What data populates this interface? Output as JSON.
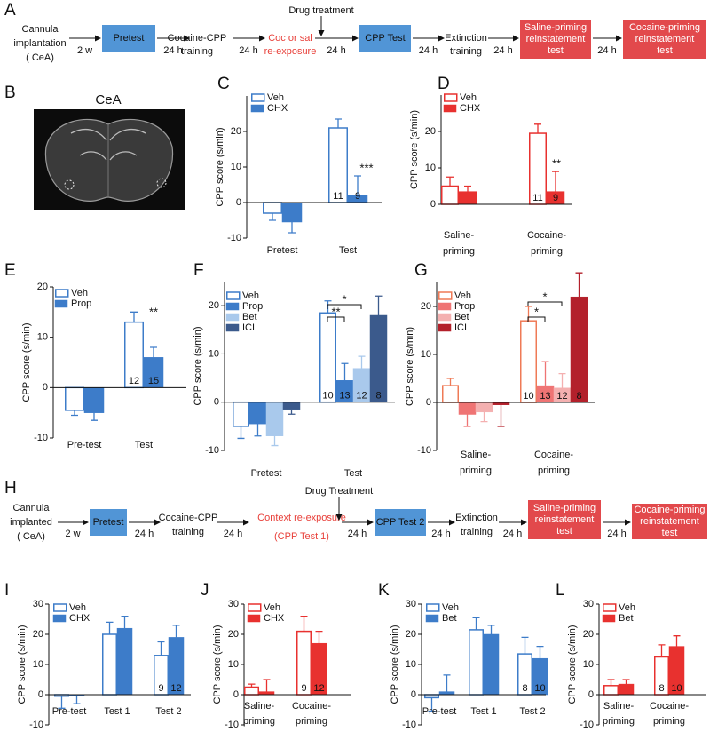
{
  "panels": [
    "A",
    "B",
    "C",
    "D",
    "E",
    "F",
    "G",
    "H",
    "I",
    "J",
    "K",
    "L"
  ],
  "timeline_a": {
    "start": [
      "Cannula",
      "implantation",
      "( CeA)"
    ],
    "intervals": [
      "2 w",
      "24 h",
      "24 h",
      "24 h",
      "24 h",
      "24 h",
      "24 h"
    ],
    "steps": [
      [
        "Pretest"
      ],
      [
        "Cocaine-CPP",
        "training"
      ],
      [
        "Coc or sal",
        "re-exposure"
      ],
      [
        "CPP Test"
      ],
      [
        "Extinction",
        "training"
      ],
      [
        "Saline-priming",
        "reinstatement",
        "test"
      ],
      [
        "Cocaine-priming",
        "reinstatement",
        "test"
      ]
    ],
    "drug": "Drug treatment"
  },
  "timeline_h": {
    "start": [
      "Cannula",
      "implanted",
      "( CeA)"
    ],
    "intervals": [
      "2 w",
      "24 h",
      "24 h",
      "24 h",
      "24 h",
      "24 h",
      "24 h"
    ],
    "steps": [
      [
        "Pretest"
      ],
      [
        "Cocaine-CPP",
        "training"
      ],
      [
        "Context re-exposure",
        "(CPP Test 1)"
      ],
      [
        "CPP Test 2"
      ],
      [
        "Extinction",
        "training"
      ],
      [
        "Saline-priming",
        "reinstatement",
        "test"
      ],
      [
        "Cocaine-priming",
        "reinstatement",
        "test"
      ]
    ],
    "drug": "Drug Treatment"
  },
  "image_b": {
    "label": "CeA"
  },
  "chart_data": [
    {
      "type": "bar",
      "ylabel": "CPP score (s/min)",
      "categories": [
        [
          "Pretest"
        ],
        [
          "Test"
        ]
      ],
      "ylim": [
        -10,
        30
      ],
      "yticks": [
        -10,
        0,
        10,
        20
      ],
      "series": [
        {
          "name": "Veh",
          "color": "#3d7cc9",
          "filled": false,
          "values": [
            -3,
            21
          ],
          "errors": [
            2,
            2.5
          ]
        },
        {
          "name": "CHX",
          "color": "#3d7cc9",
          "filled": true,
          "values": [
            -5.5,
            2
          ],
          "errors": [
            3,
            5.5
          ]
        }
      ],
      "n_labels": [
        11,
        9
      ],
      "annotations": [
        "***"
      ]
    },
    {
      "type": "bar",
      "ylabel": "CPP score (s/min)",
      "categories": [
        [
          "Saline-",
          "priming"
        ],
        [
          "Cocaine-",
          "priming"
        ]
      ],
      "ylim": [
        0,
        30
      ],
      "yticks": [
        0,
        10,
        20
      ],
      "series": [
        {
          "name": "Veh",
          "color": "#e8312f",
          "filled": false,
          "values": [
            5,
            19.5
          ],
          "errors": [
            2.5,
            2.5
          ]
        },
        {
          "name": "CHX",
          "color": "#e8312f",
          "filled": true,
          "values": [
            3.5,
            3.5
          ],
          "errors": [
            1.5,
            5.5
          ]
        }
      ],
      "n_labels": [
        11,
        9
      ],
      "annotations": [
        "**"
      ]
    },
    {
      "type": "bar",
      "ylabel": "CPP score (s/min)",
      "categories": [
        [
          "Pre-test"
        ],
        [
          "Test"
        ]
      ],
      "ylim": [
        -10,
        20
      ],
      "yticks": [
        -10,
        0,
        10,
        20
      ],
      "series": [
        {
          "name": "Veh",
          "color": "#3d7cc9",
          "filled": false,
          "values": [
            -4.5,
            13
          ],
          "errors": [
            1,
            2
          ]
        },
        {
          "name": "Prop",
          "color": "#3d7cc9",
          "filled": true,
          "values": [
            -5,
            6
          ],
          "errors": [
            1.5,
            2
          ]
        }
      ],
      "n_labels": [
        12,
        15
      ],
      "annotations": [
        "**"
      ]
    },
    {
      "type": "bar",
      "ylabel": "CPP score (s/min)",
      "categories": [
        [
          "Pretest"
        ],
        [
          "Test"
        ]
      ],
      "ylim": [
        -10,
        25
      ],
      "yticks": [
        -10,
        0,
        10,
        20
      ],
      "series": [
        {
          "name": "Veh",
          "color": "#3d7cc9",
          "filled": false,
          "values": [
            -5,
            18.5
          ],
          "errors": [
            2.5,
            2.5
          ]
        },
        {
          "name": "Prop",
          "color": "#3d7cc9",
          "filled": true,
          "values": [
            -4.5,
            4.5
          ],
          "errors": [
            2.5,
            3.5
          ]
        },
        {
          "name": "Bet",
          "color": "#a9c9ec",
          "filled": true,
          "values": [
            -7,
            7
          ],
          "errors": [
            2,
            2.5
          ]
        },
        {
          "name": "ICI",
          "color": "#3b5a8c",
          "filled": true,
          "values": [
            -1.5,
            18
          ],
          "errors": [
            1,
            4
          ]
        }
      ],
      "n_labels": [
        10,
        13,
        12,
        8
      ],
      "annotations": [
        "*",
        "**"
      ]
    },
    {
      "type": "bar",
      "ylabel": "CPP score (s/min)",
      "categories": [
        [
          "Saline-",
          "priming"
        ],
        [
          "Cocaine-",
          "priming"
        ]
      ],
      "ylim": [
        -10,
        25
      ],
      "yticks": [
        -10,
        0,
        10,
        20
      ],
      "series": [
        {
          "name": "Veh",
          "color": "#ef7a56",
          "filled": false,
          "values": [
            3.5,
            17
          ],
          "errors": [
            1.5,
            3
          ]
        },
        {
          "name": "Prop",
          "color": "#ef7474",
          "filled": true,
          "values": [
            -2.5,
            3.5
          ],
          "errors": [
            2.5,
            5
          ]
        },
        {
          "name": "Bet",
          "color": "#f4b0b0",
          "filled": true,
          "values": [
            -2,
            3
          ],
          "errors": [
            2,
            3
          ]
        },
        {
          "name": "ICI",
          "color": "#b3202b",
          "filled": true,
          "values": [
            -0.5,
            22
          ],
          "errors": [
            4.5,
            5
          ]
        }
      ],
      "n_labels": [
        10,
        13,
        12,
        8
      ],
      "annotations": [
        "*",
        "*"
      ]
    },
    {
      "type": "bar",
      "ylabel": "CPP score (s/min)",
      "categories": [
        [
          "Pre-test"
        ],
        [
          "Test 1"
        ],
        [
          "Test 2"
        ]
      ],
      "ylim": [
        -10,
        30
      ],
      "yticks": [
        -10,
        0,
        10,
        20,
        30
      ],
      "series": [
        {
          "name": "Veh",
          "color": "#3d7cc9",
          "filled": false,
          "values": [
            -0.5,
            20,
            13
          ],
          "errors": [
            4,
            4,
            4.5
          ]
        },
        {
          "name": "CHX",
          "color": "#3d7cc9",
          "filled": true,
          "values": [
            -0.5,
            22,
            19
          ],
          "errors": [
            2.5,
            4,
            4
          ]
        }
      ],
      "n_labels": [
        9,
        12
      ],
      "annotations": []
    },
    {
      "type": "bar",
      "ylabel": "CPP score (s/min)",
      "categories": [
        [
          "Saline-",
          "priming"
        ],
        [
          "Cocaine-",
          "priming"
        ]
      ],
      "ylim": [
        -10,
        30
      ],
      "yticks": [
        -10,
        0,
        10,
        20,
        30
      ],
      "series": [
        {
          "name": "Veh",
          "color": "#e8312f",
          "filled": false,
          "values": [
            2.5,
            21
          ],
          "errors": [
            1,
            5
          ]
        },
        {
          "name": "CHX",
          "color": "#e8312f",
          "filled": true,
          "values": [
            1,
            17
          ],
          "errors": [
            4,
            4
          ]
        }
      ],
      "n_labels": [
        9,
        12
      ],
      "annotations": []
    },
    {
      "type": "bar",
      "ylabel": "CPP score (s/min)",
      "categories": [
        [
          "Pre-test"
        ],
        [
          "Test 1"
        ],
        [
          "Test 2"
        ]
      ],
      "ylim": [
        -10,
        30
      ],
      "yticks": [
        -10,
        0,
        10,
        20,
        30
      ],
      "series": [
        {
          "name": "Veh",
          "color": "#3d7cc9",
          "filled": false,
          "values": [
            -1,
            21.5,
            13.5
          ],
          "errors": [
            4.5,
            4,
            5.5
          ]
        },
        {
          "name": "Bet",
          "color": "#3d7cc9",
          "filled": true,
          "values": [
            1,
            20,
            12
          ],
          "errors": [
            5.5,
            3,
            4
          ]
        }
      ],
      "n_labels": [
        8,
        10
      ],
      "annotations": []
    },
    {
      "type": "bar",
      "ylabel": "CPP score (s/min)",
      "categories": [
        [
          "Saline-",
          "priming"
        ],
        [
          "Cocaine-",
          "priming"
        ]
      ],
      "ylim": [
        -10,
        30
      ],
      "yticks": [
        -10,
        0,
        10,
        20,
        30
      ],
      "series": [
        {
          "name": "Veh",
          "color": "#e8312f",
          "filled": false,
          "values": [
            3,
            12.5
          ],
          "errors": [
            2,
            4
          ]
        },
        {
          "name": "Bet",
          "color": "#e8312f",
          "filled": true,
          "values": [
            3.5,
            16
          ],
          "errors": [
            1.5,
            3.5
          ]
        }
      ],
      "n_labels": [
        8,
        10
      ],
      "annotations": []
    }
  ]
}
